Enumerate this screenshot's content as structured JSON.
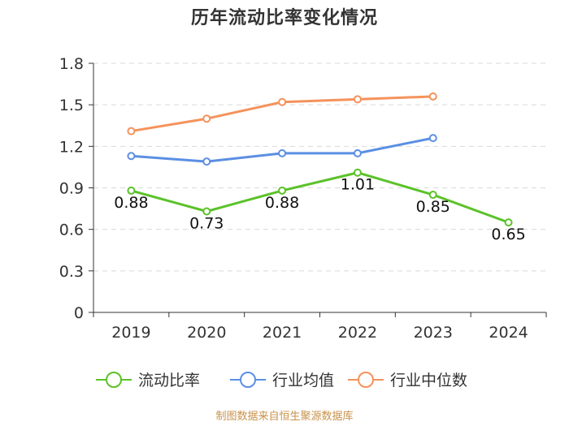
{
  "chart_data": {
    "type": "line",
    "title": "历年流动比率变化情况",
    "categories": [
      "2019",
      "2020",
      "2021",
      "2022",
      "2023",
      "2024"
    ],
    "ylim": [
      0,
      1.8
    ],
    "yticks": [
      "0",
      "0.3",
      "0.6",
      "0.9",
      "1.2",
      "1.5",
      "1.8"
    ],
    "grid": true,
    "legend_position": "bottom",
    "series": [
      {
        "name": "流动比率",
        "color": "#5bc229",
        "values": [
          0.88,
          0.73,
          0.88,
          1.01,
          0.85,
          0.65
        ],
        "labels": [
          "0.88",
          "0.73",
          "0.88",
          "1.01",
          "0.85",
          "0.65"
        ]
      },
      {
        "name": "行业均值",
        "color": "#5b8fe3",
        "values": [
          1.13,
          1.09,
          1.15,
          1.15,
          1.26,
          null
        ]
      },
      {
        "name": "行业中位数",
        "color": "#f5925b",
        "values": [
          1.31,
          1.4,
          1.52,
          1.54,
          1.56,
          null
        ]
      }
    ]
  },
  "source_note": "制图数据来自恒生聚源数据库"
}
